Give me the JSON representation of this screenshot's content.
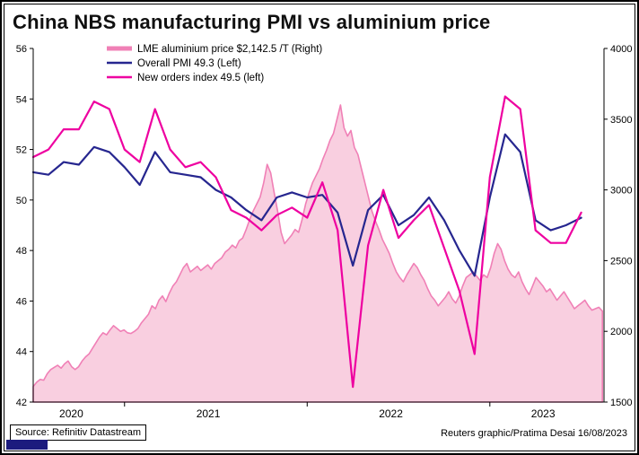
{
  "title": "China NBS manufacturing PMI vs aluminium price",
  "footer": {
    "source": "Source: Refinitiv Datastream",
    "credit": "Reuters graphic/Pratima Desai 16/08/2023"
  },
  "chart_data": {
    "type": "line",
    "title": "China NBS manufacturing PMI vs aluminium price",
    "x_start_month": "2020-07",
    "x_end_month": "2023-07",
    "x_domain_months": 37.5,
    "grid": false,
    "legend_position": "top-left",
    "left_axis": {
      "min": 42,
      "max": 56,
      "step": 2
    },
    "right_axis": {
      "min": 1500,
      "max": 4000,
      "step": 500
    },
    "year_tick_months": [
      6,
      18,
      30
    ],
    "year_labels": [
      {
        "label": "2020",
        "center_month": 2.5
      },
      {
        "label": "2021",
        "center_month": 11.5
      },
      {
        "label": "2022",
        "center_month": 23.5
      },
      {
        "label": "2023",
        "center_month": 33.5
      }
    ],
    "series": [
      {
        "id": "aluminium",
        "name": "LME aluminium price $2,142.5 /T (Right)",
        "type": "area",
        "axis": "right",
        "color": "#f080b6",
        "fill": "#f9cfe0",
        "frequency": "weekly",
        "month_step": 0.2294,
        "values": [
          1610,
          1640,
          1660,
          1655,
          1700,
          1730,
          1745,
          1760,
          1740,
          1770,
          1790,
          1750,
          1730,
          1750,
          1790,
          1820,
          1840,
          1880,
          1920,
          1960,
          1990,
          1975,
          2010,
          2040,
          2020,
          2000,
          2010,
          1990,
          1985,
          2000,
          2020,
          2060,
          2090,
          2120,
          2180,
          2160,
          2220,
          2250,
          2210,
          2270,
          2320,
          2350,
          2400,
          2450,
          2480,
          2420,
          2440,
          2460,
          2430,
          2450,
          2470,
          2440,
          2480,
          2500,
          2520,
          2560,
          2580,
          2610,
          2590,
          2640,
          2660,
          2720,
          2790,
          2850,
          2900,
          2950,
          3050,
          3180,
          3120,
          2980,
          2850,
          2700,
          2620,
          2650,
          2680,
          2720,
          2700,
          2790,
          2900,
          2980,
          3050,
          3100,
          3150,
          3220,
          3280,
          3350,
          3400,
          3500,
          3600,
          3440,
          3380,
          3420,
          3300,
          3250,
          3150,
          3050,
          2950,
          2850,
          2780,
          2720,
          2650,
          2600,
          2550,
          2480,
          2420,
          2380,
          2350,
          2400,
          2440,
          2480,
          2450,
          2400,
          2360,
          2300,
          2250,
          2220,
          2180,
          2210,
          2240,
          2280,
          2230,
          2200,
          2250,
          2320,
          2380,
          2400,
          2420,
          2390,
          2360,
          2400,
          2380,
          2450,
          2550,
          2620,
          2580,
          2500,
          2440,
          2400,
          2380,
          2420,
          2350,
          2300,
          2260,
          2320,
          2380,
          2350,
          2320,
          2280,
          2300,
          2260,
          2220,
          2250,
          2280,
          2240,
          2200,
          2160,
          2180,
          2200,
          2220,
          2180,
          2150,
          2160,
          2170,
          2142.5
        ]
      },
      {
        "id": "pmi",
        "name": "Overall PMI 49.3 (Left)",
        "type": "line",
        "axis": "left",
        "color": "#26268f",
        "frequency": "monthly",
        "month_step": 1,
        "values": [
          51.1,
          51.0,
          51.5,
          51.4,
          52.1,
          51.9,
          51.3,
          50.6,
          51.9,
          51.1,
          51.0,
          50.9,
          50.4,
          50.1,
          49.6,
          49.2,
          50.1,
          50.3,
          50.1,
          50.2,
          49.5,
          47.4,
          49.6,
          50.2,
          49.0,
          49.4,
          50.1,
          49.2,
          48.0,
          47.0,
          50.1,
          52.6,
          51.9,
          49.2,
          48.8,
          49.0,
          49.3
        ]
      },
      {
        "id": "new_orders",
        "name": "New orders index 49.5 (left)",
        "type": "line",
        "axis": "left",
        "color": "#ee00a0",
        "frequency": "monthly",
        "month_step": 1,
        "values": [
          51.7,
          52.0,
          52.8,
          52.8,
          53.9,
          53.6,
          52.0,
          51.5,
          53.6,
          52.0,
          51.3,
          51.5,
          50.9,
          49.6,
          49.3,
          48.8,
          49.4,
          49.7,
          49.3,
          50.7,
          48.8,
          42.6,
          48.2,
          50.4,
          48.5,
          49.2,
          49.8,
          48.1,
          46.4,
          43.9,
          50.9,
          54.1,
          53.6,
          48.8,
          48.3,
          48.3,
          49.5
        ]
      }
    ]
  }
}
